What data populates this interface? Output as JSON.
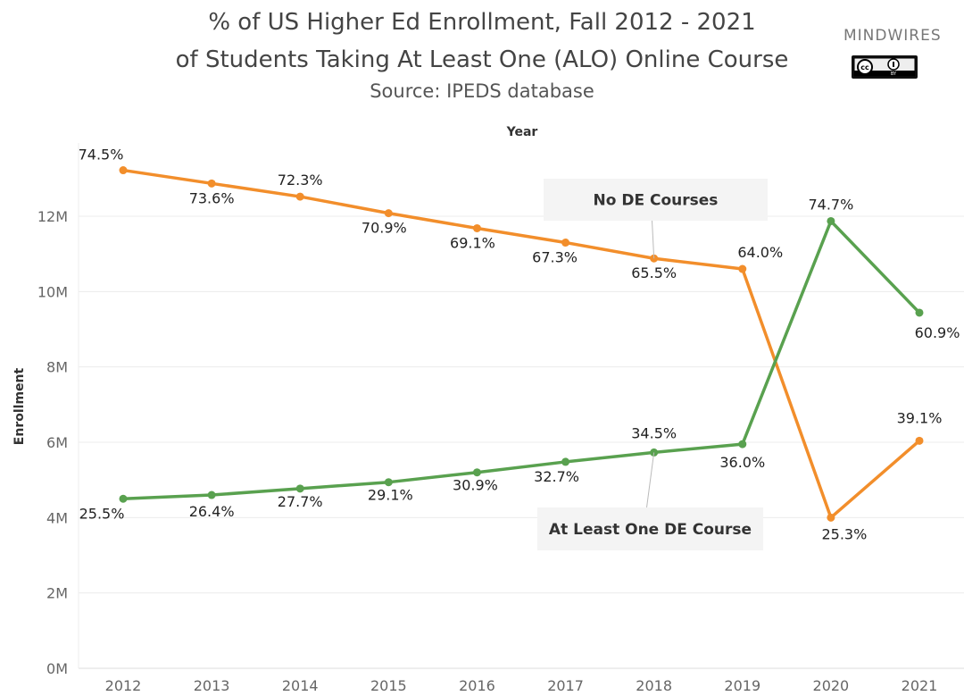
{
  "header": {
    "title_line1": "% of US Higher Ed Enrollment, Fall 2012 - 2021",
    "title_line2": "of Students Taking At Least One (ALO) Online Course",
    "subtitle": "Source: IPEDS database"
  },
  "logo": {
    "text": "MINDWIRES",
    "badge": "cc BY"
  },
  "chart_data": {
    "type": "line",
    "title": "% of US Higher Ed Enrollment, Fall 2012 - 2021 of Students Taking At Least One (ALO) Online Course",
    "subtitle": "Source: IPEDS database",
    "xlabel": "Year",
    "ylabel": "Enrollment",
    "ylim": [
      0,
      13500000
    ],
    "yticks": [
      0,
      2000000,
      4000000,
      6000000,
      8000000,
      10000000,
      12000000
    ],
    "ytick_labels": [
      "0M",
      "2M",
      "4M",
      "6M",
      "8M",
      "10M",
      "12M"
    ],
    "categories": [
      "2012",
      "2013",
      "2014",
      "2015",
      "2016",
      "2017",
      "2018",
      "2019",
      "2020",
      "2021"
    ],
    "series": [
      {
        "name": "No DE Courses",
        "color": "#f28e2b",
        "values": [
          13220000,
          12870000,
          12520000,
          12080000,
          11680000,
          11300000,
          10880000,
          10600000,
          4000000,
          6040000
        ],
        "labels": [
          "74.5%",
          "73.6%",
          "72.3%",
          "70.9%",
          "69.1%",
          "67.3%",
          "65.5%",
          "64.0%",
          "25.3%",
          "39.1%"
        ]
      },
      {
        "name": "At Least One DE Course",
        "color": "#59a14f",
        "values": [
          4500000,
          4600000,
          4770000,
          4940000,
          5200000,
          5480000,
          5730000,
          5950000,
          11870000,
          9440000
        ],
        "labels": [
          "25.5%",
          "26.4%",
          "27.7%",
          "29.1%",
          "30.9%",
          "32.7%",
          "34.5%",
          "36.0%",
          "74.7%",
          "60.9%"
        ]
      }
    ],
    "annotations": [
      {
        "text": "No DE Courses",
        "series": 0,
        "point": 6
      },
      {
        "text": "At Least One DE Course",
        "series": 1,
        "point": 6
      }
    ]
  }
}
